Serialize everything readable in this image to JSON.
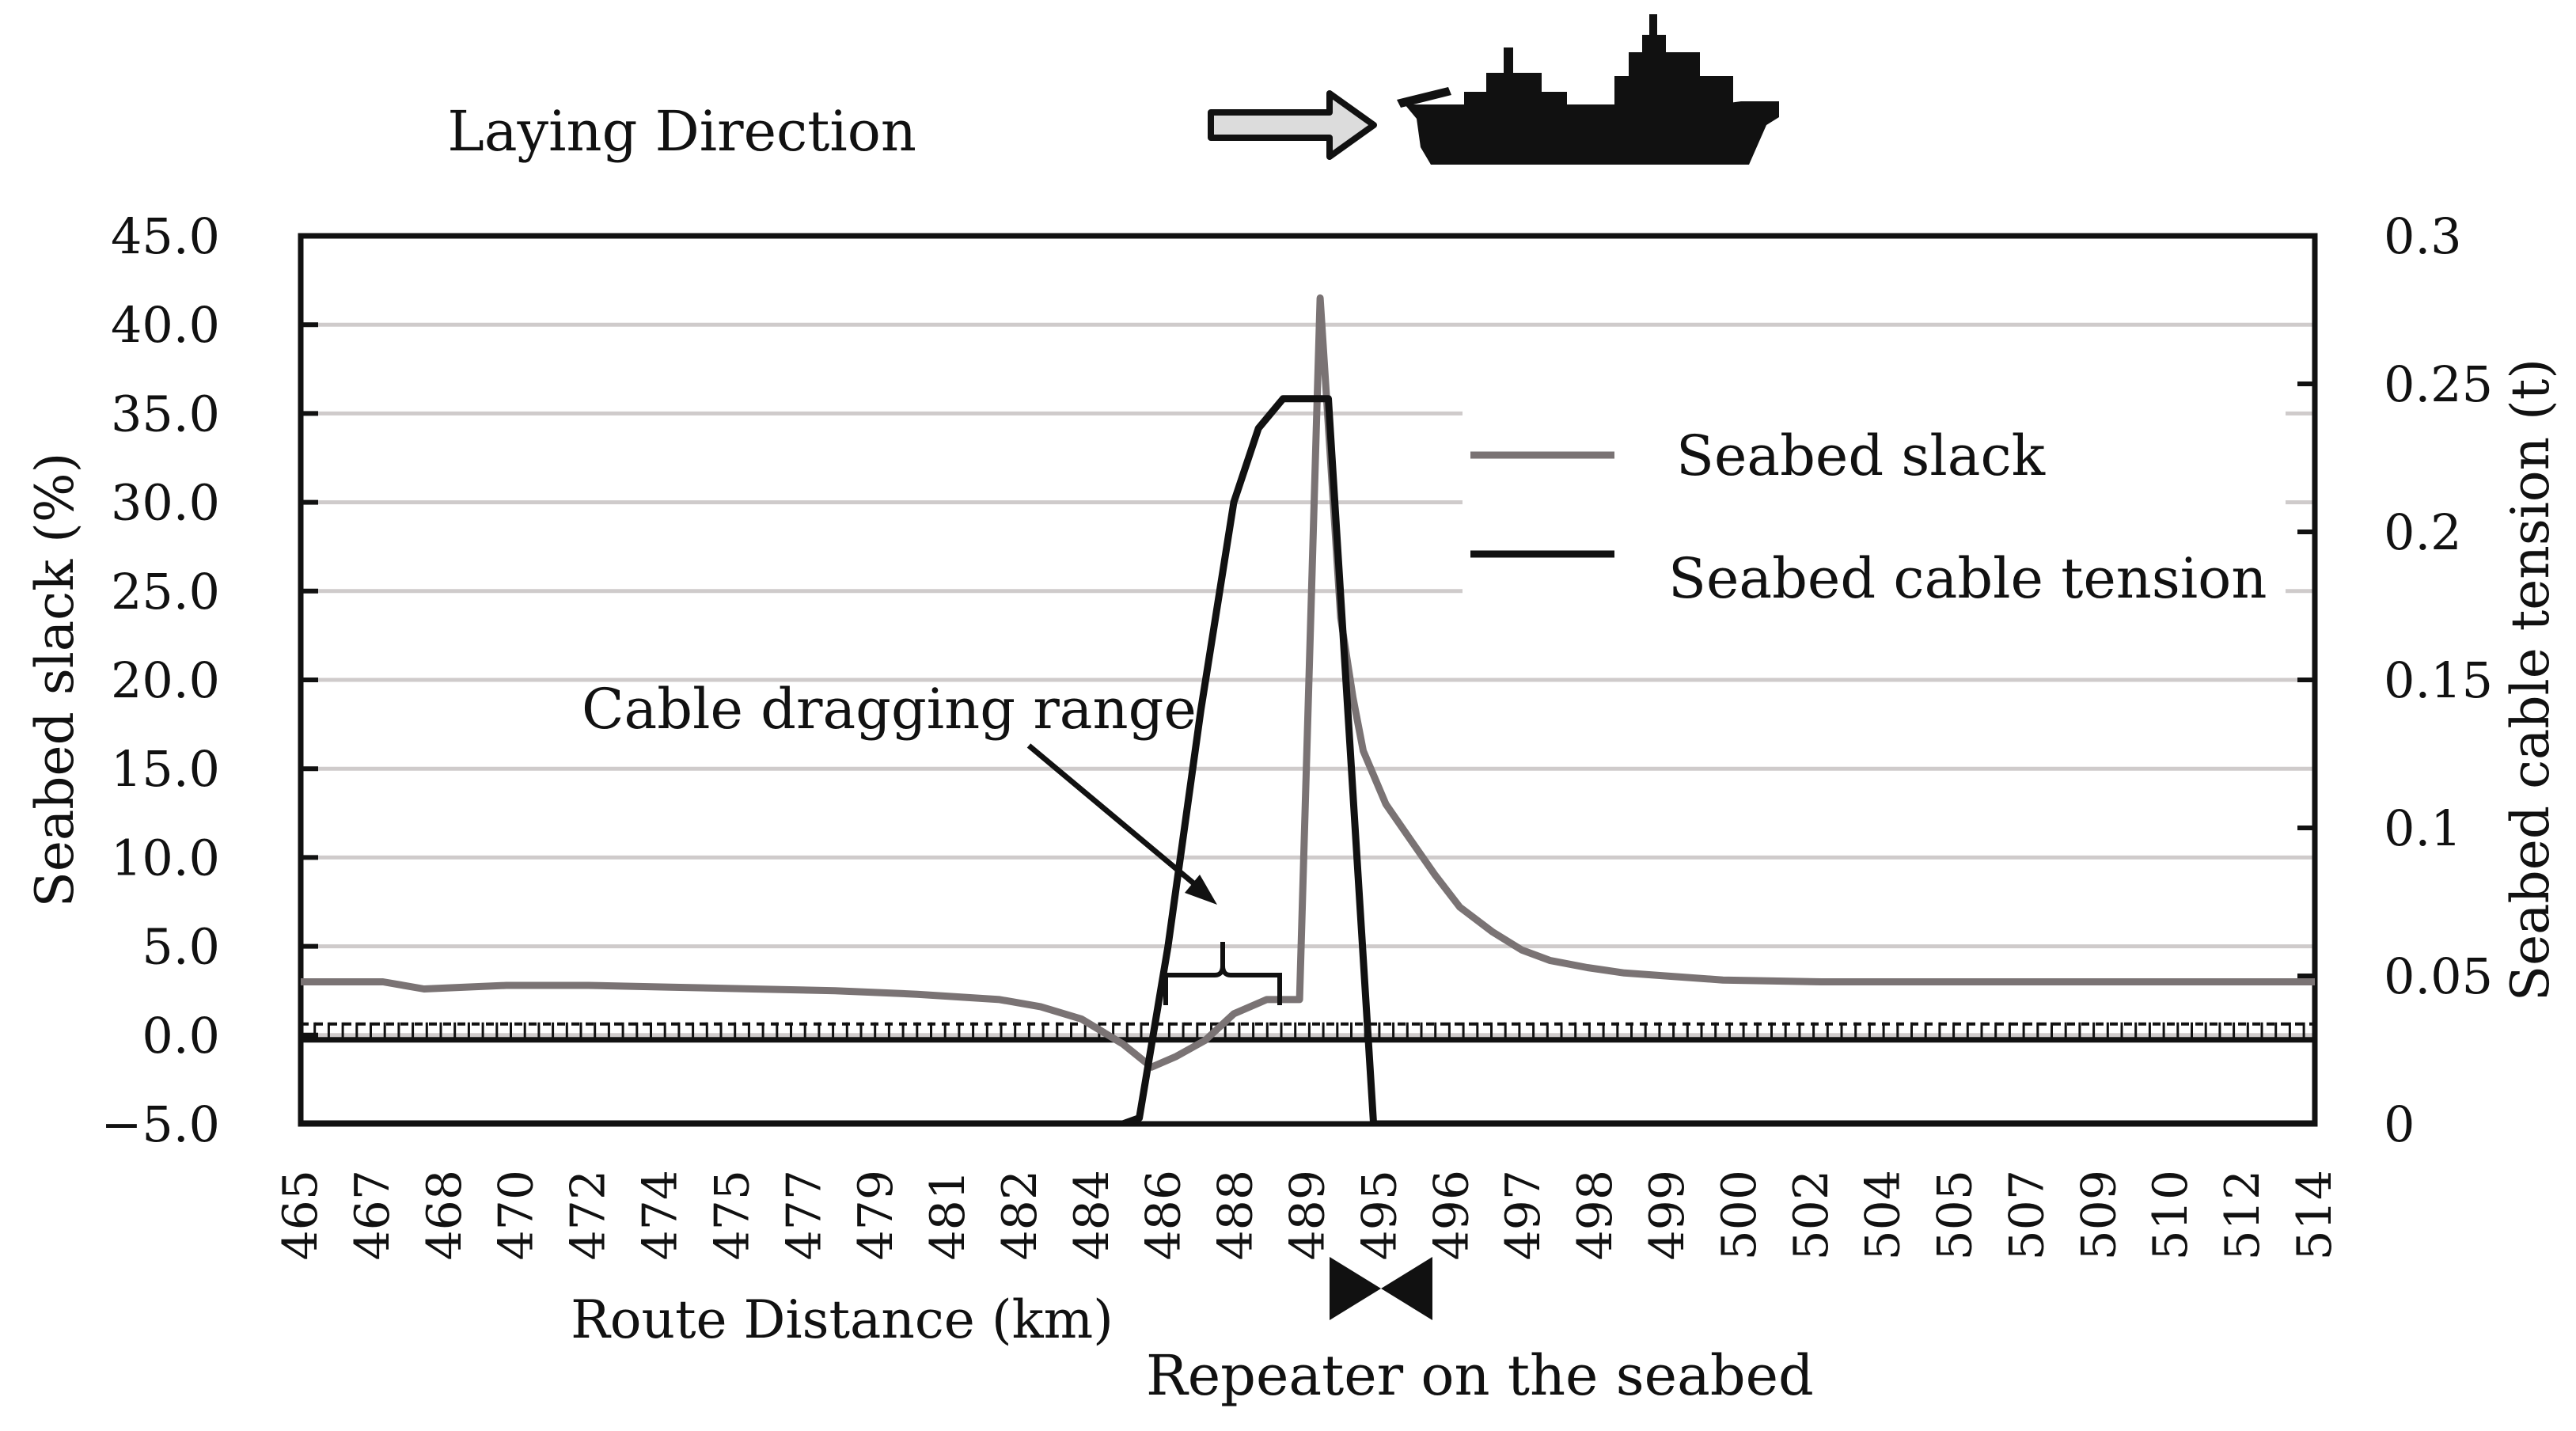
{
  "chart_data": {
    "type": "line",
    "header_label": "Laying Direction",
    "xlabel": "Route Distance (km)",
    "ylabel_left": "Seabed slack (%)",
    "ylabel_right": "Seabed cable tension (t)",
    "ylim_left": [
      -5.0,
      45.0
    ],
    "ylim_right": [
      0,
      0.3
    ],
    "xlim": [
      465,
      514
    ],
    "grid": true,
    "legend_position": "top-right",
    "x_tick_labels": [
      "465",
      "467",
      "468",
      "470",
      "472",
      "474",
      "475",
      "477",
      "479",
      "481",
      "482",
      "484",
      "486",
      "488",
      "489",
      "495",
      "496",
      "497",
      "498",
      "499",
      "500",
      "502",
      "504",
      "505",
      "507",
      "509",
      "510",
      "512",
      "514"
    ],
    "y_left_tick_labels": [
      "45.0",
      "40.0",
      "35.0",
      "30.0",
      "25.0",
      "20.0",
      "15.0",
      "10.0",
      "5.0",
      "0.0",
      "−5.0"
    ],
    "y_right_tick_labels": [
      "0.3",
      "0.25",
      "0.2",
      "0.15",
      "0.1",
      "0.05",
      "0"
    ],
    "annotations": [
      {
        "text": "Cable dragging range"
      },
      {
        "text": "Repeater on the seabed"
      }
    ],
    "series": [
      {
        "name": "Seabed slack",
        "axis": "left",
        "color": "#7a7374",
        "x": [
          465,
          467,
          468,
          470,
          472,
          474,
          476,
          478,
          480,
          482,
          483,
          484,
          485,
          485.7,
          486.3,
          487,
          487.7,
          488.5,
          489.3,
          489.8,
          490.3,
          490.6,
          490.85,
          491.4,
          492,
          492.6,
          493.2,
          494,
          494.7,
          495.4,
          496.3,
          497.2,
          498.4,
          499.6,
          500.8,
          502,
          503.5,
          505,
          507,
          509,
          511,
          514
        ],
        "values": [
          3.0,
          3.0,
          2.6,
          2.8,
          2.8,
          2.7,
          2.6,
          2.5,
          2.3,
          2.0,
          1.6,
          0.9,
          -0.5,
          -1.8,
          -1.2,
          -0.3,
          1.2,
          2.0,
          2.0,
          41.5,
          23.5,
          19.0,
          16.0,
          13.0,
          11.0,
          9.0,
          7.2,
          5.8,
          4.8,
          4.2,
          3.8,
          3.5,
          3.3,
          3.1,
          3.05,
          3.0,
          3.0,
          3.0,
          3.0,
          3.0,
          3.0,
          3.0
        ]
      },
      {
        "name": "Seabed cable tension",
        "axis": "right",
        "color": "#111111",
        "x": [
          465,
          485.0,
          485.4,
          486.1,
          486.9,
          487.7,
          488.3,
          488.9,
          489.3,
          489.6,
          490.0,
          491.1,
          514
        ],
        "values": [
          0,
          0,
          0.002,
          0.06,
          0.14,
          0.21,
          0.235,
          0.245,
          0.245,
          0.245,
          0.245,
          0,
          0
        ]
      }
    ]
  }
}
